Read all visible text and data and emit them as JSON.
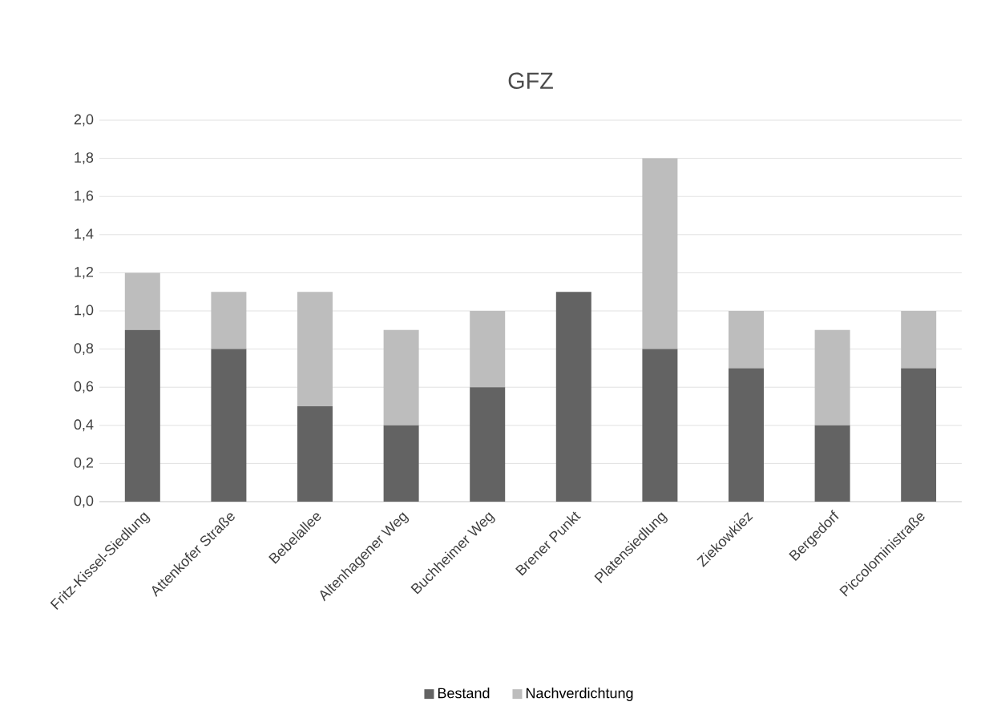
{
  "chart_data": {
    "type": "bar",
    "title": "GFZ",
    "stacked": true,
    "grid": "y",
    "legend": "bottom",
    "categories": [
      "Fritz-Kissel-Siedlung",
      "Attenkofer Straße",
      "Bebelallee",
      "Altenhagener Weg",
      "Buchheimer Weg",
      "Brener Punkt",
      "Platensiedlung",
      "Ziekowkiez",
      "Bergedorf",
      "Piccoloministraße"
    ],
    "series": [
      {
        "name": "Bestand",
        "color": "#636363",
        "values": [
          0.9,
          0.8,
          0.5,
          0.4,
          0.6,
          1.1,
          0.8,
          0.7,
          0.4,
          0.7
        ]
      },
      {
        "name": "Nachverdichtung",
        "color": "#bdbdbd",
        "values": [
          0.3,
          0.3,
          0.6,
          0.5,
          0.4,
          0,
          1.0,
          0.3,
          0.5,
          0.3
        ]
      }
    ],
    "ylim": [
      0,
      2
    ],
    "yticks": [
      {
        "value": 0,
        "label": "0,0"
      },
      {
        "value": 0.2,
        "label": "0,2"
      },
      {
        "value": 0.4,
        "label": "0,4"
      },
      {
        "value": 0.6,
        "label": "0,6"
      },
      {
        "value": 0.8,
        "label": "0,8"
      },
      {
        "value": 1.0,
        "label": "1,0"
      },
      {
        "value": 1.2,
        "label": "1,2"
      },
      {
        "value": 1.4,
        "label": "1,4"
      },
      {
        "value": 1.6,
        "label": "1,6"
      },
      {
        "value": 1.8,
        "label": "1,8"
      },
      {
        "value": 2.0,
        "label": "2,0"
      }
    ]
  }
}
